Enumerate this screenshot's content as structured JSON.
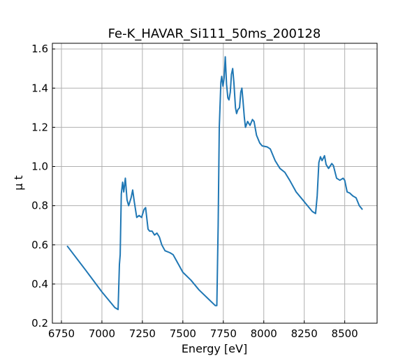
{
  "chart_data": {
    "type": "line",
    "title": "Fe-K_HAVAR_Si111_50ms_200128",
    "xlabel": "Energy [eV]",
    "ylabel": "μ t",
    "xlim": [
      6694,
      8700
    ],
    "ylim": [
      0.2,
      1.629
    ],
    "grid": true,
    "x_ticks": [
      6750,
      7000,
      7250,
      7500,
      7750,
      8000,
      8250,
      8500
    ],
    "x_tick_labels": [
      "6750",
      "7000",
      "7250",
      "7500",
      "7750",
      "8000",
      "8250",
      "8500"
    ],
    "y_ticks": [
      0.2,
      0.4,
      0.6,
      0.8,
      1.0,
      1.2,
      1.4,
      1.6
    ],
    "y_tick_labels": [
      "0.2",
      "0.4",
      "0.6",
      "0.8",
      "1.0",
      "1.2",
      "1.4",
      "1.6"
    ],
    "line_color": "#1f77b4",
    "series": [
      {
        "name": "mu_t",
        "x": [
          6785,
          6900,
          7000,
          7080,
          7100,
          7108,
          7113,
          7120,
          7128,
          7135,
          7145,
          7155,
          7165,
          7180,
          7190,
          7200,
          7215,
          7230,
          7245,
          7260,
          7270,
          7285,
          7295,
          7310,
          7325,
          7340,
          7355,
          7370,
          7390,
          7420,
          7440,
          7480,
          7500,
          7550,
          7600,
          7650,
          7700,
          7710,
          7718,
          7725,
          7735,
          7740,
          7748,
          7755,
          7762,
          7770,
          7778,
          7785,
          7793,
          7800,
          7808,
          7815,
          7825,
          7832,
          7840,
          7850,
          7858,
          7865,
          7872,
          7880,
          7887,
          7900,
          7915,
          7930,
          7940,
          7955,
          7975,
          7990,
          8020,
          8040,
          8070,
          8100,
          8130,
          8160,
          8200,
          8240,
          8270,
          8300,
          8320,
          8330,
          8340,
          8350,
          8360,
          8375,
          8385,
          8400,
          8420,
          8430,
          8450,
          8470,
          8490,
          8500,
          8515,
          8530,
          8550,
          8570,
          8590,
          8610
        ],
        "y": [
          0.595,
          0.47,
          0.36,
          0.28,
          0.27,
          0.5,
          0.55,
          0.86,
          0.92,
          0.87,
          0.94,
          0.83,
          0.8,
          0.84,
          0.88,
          0.82,
          0.74,
          0.75,
          0.74,
          0.78,
          0.79,
          0.68,
          0.67,
          0.67,
          0.65,
          0.66,
          0.64,
          0.6,
          0.57,
          0.56,
          0.55,
          0.49,
          0.46,
          0.42,
          0.37,
          0.33,
          0.29,
          0.29,
          0.7,
          1.2,
          1.43,
          1.46,
          1.41,
          1.45,
          1.56,
          1.42,
          1.35,
          1.34,
          1.38,
          1.47,
          1.5,
          1.43,
          1.3,
          1.27,
          1.29,
          1.3,
          1.38,
          1.4,
          1.33,
          1.25,
          1.2,
          1.23,
          1.21,
          1.24,
          1.23,
          1.16,
          1.12,
          1.105,
          1.1,
          1.09,
          1.03,
          0.99,
          0.97,
          0.93,
          0.87,
          0.83,
          0.8,
          0.77,
          0.76,
          0.85,
          1.02,
          1.05,
          1.03,
          1.055,
          1.01,
          0.99,
          1.015,
          1.005,
          0.94,
          0.93,
          0.94,
          0.93,
          0.87,
          0.865,
          0.85,
          0.84,
          0.8,
          0.78
        ]
      }
    ]
  }
}
